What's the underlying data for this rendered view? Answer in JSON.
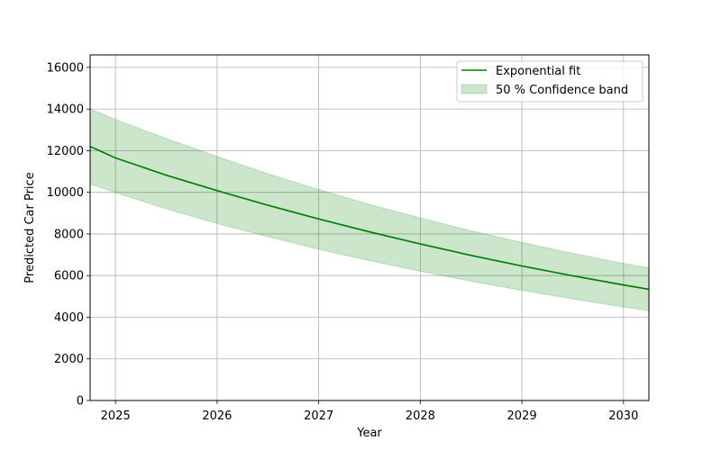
{
  "chart_data": {
    "type": "line",
    "title": "",
    "xlabel": "Year",
    "ylabel": "Predicted Car Price",
    "xlim": [
      2024.75,
      2030.25
    ],
    "ylim": [
      0,
      16600
    ],
    "x_ticks": [
      2025,
      2026,
      2027,
      2028,
      2029,
      2030
    ],
    "y_ticks": [
      0,
      2000,
      4000,
      6000,
      8000,
      10000,
      12000,
      14000,
      16000
    ],
    "grid": true,
    "legend_position": "top-right",
    "series": [
      {
        "name": "Exponential fit",
        "kind": "line",
        "color": "#008000",
        "x": [
          2024.75,
          2025.0,
          2025.5,
          2026.0,
          2026.5,
          2027.0,
          2027.5,
          2028.0,
          2028.5,
          2029.0,
          2029.5,
          2030.0,
          2030.25
        ],
        "y": [
          12200,
          11650,
          10820,
          10080,
          9380,
          8720,
          8100,
          7520,
          6970,
          6460,
          5990,
          5550,
          5340
        ]
      },
      {
        "name": "50 % Confidence band",
        "kind": "band",
        "color": "#008000",
        "opacity": 0.2,
        "x": [
          2024.75,
          2025.0,
          2025.5,
          2026.0,
          2026.5,
          2027.0,
          2027.5,
          2028.0,
          2028.5,
          2029.0,
          2029.5,
          2030.0,
          2030.25
        ],
        "y_lower": [
          10400,
          9990,
          9200,
          8500,
          7870,
          7260,
          6720,
          6210,
          5730,
          5290,
          4880,
          4490,
          4320
        ],
        "y_upper": [
          14000,
          13500,
          12580,
          11720,
          10890,
          10130,
          9420,
          8770,
          8150,
          7590,
          7070,
          6580,
          6370
        ]
      }
    ]
  }
}
